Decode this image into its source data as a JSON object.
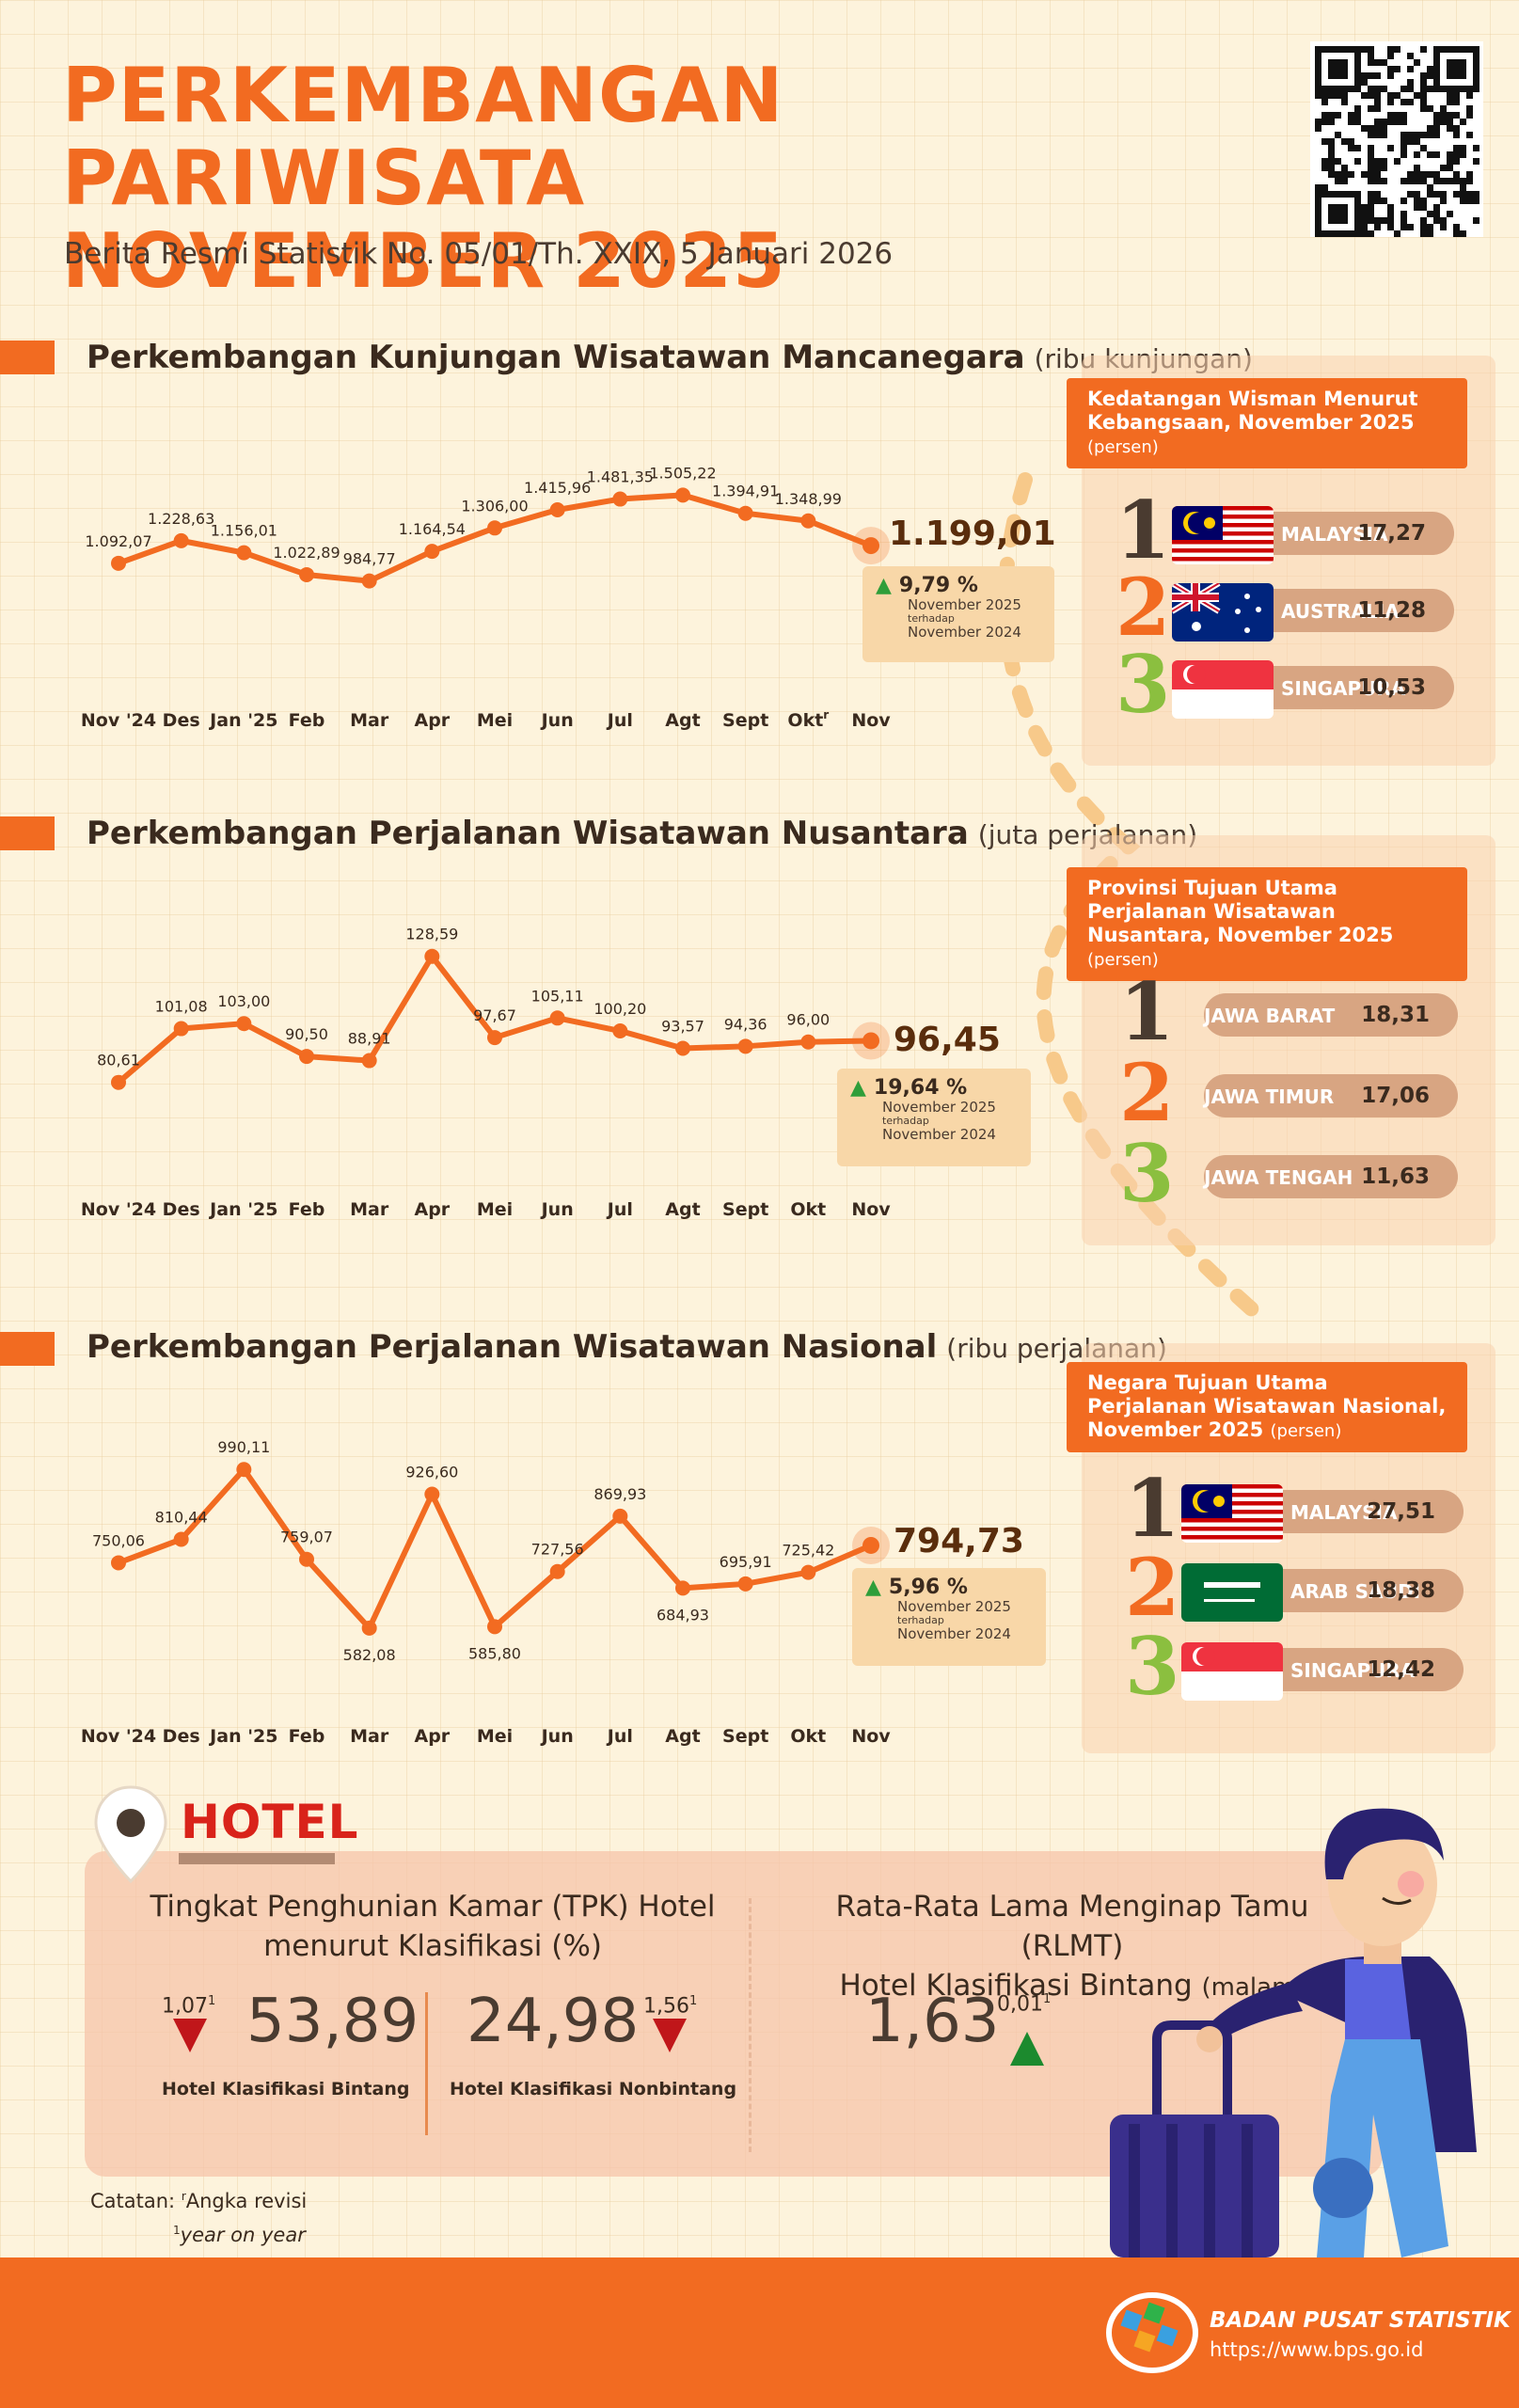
{
  "header": {
    "title_line1": "PERKEMBANGAN PARIWISATA",
    "title_line2": "NOVEMBER 2025",
    "subtitle": "Berita Resmi Statistik No. 05/01/Th. XXIX, 5 Januari 2026"
  },
  "colors": {
    "accent": "#f26b21",
    "line": "#f26b21",
    "up": "#2f9e3a",
    "down": "#c0161a",
    "footer": "#f26b21"
  },
  "months": [
    "Nov '24",
    "Des",
    "Jan '25",
    "Feb",
    "Mar",
    "Apr",
    "Mei",
    "Jun",
    "Jul",
    "Agt",
    "Sept",
    "Okt",
    "Nov"
  ],
  "wisman": {
    "title": "Perkembangan Kunjungan Wisatawan Mancanegara",
    "unit": "(ribu kunjungan)",
    "okt_mark": "r",
    "labels": [
      "1.092,07",
      "1.228,63",
      "1.156,01",
      "1.022,89",
      "984,77",
      "1.164,54",
      "1.306,00",
      "1.415,96",
      "1.481,35",
      "1.505,22",
      "1.394,91",
      "1.348,99",
      "1.199,01"
    ],
    "change": {
      "pct": "9,79 %",
      "l1": "November 2025",
      "l2": "terhadap",
      "l3": "November 2024"
    },
    "panel": {
      "title": "Kedatangan Wisman Menurut Kebangsaan, November 2025",
      "pct_note": "(persen)",
      "items": [
        {
          "rank": "1",
          "name": "MALAYSIA",
          "value": "17,27",
          "flag": "malaysia-flag-icon"
        },
        {
          "rank": "2",
          "name": "AUSTRALIA",
          "value": "11,28",
          "flag": "australia-flag-icon"
        },
        {
          "rank": "3",
          "name": "SINGAPURA",
          "value": "10,53",
          "flag": "singapore-flag-icon"
        }
      ]
    }
  },
  "wisnus": {
    "title": "Perkembangan Perjalanan Wisatawan Nusantara",
    "unit": "(juta perjalanan)",
    "labels": [
      "80,61",
      "101,08",
      "103,00",
      "90,50",
      "88,91",
      "128,59",
      "97,67",
      "105,11",
      "100,20",
      "93,57",
      "94,36",
      "96,00",
      "96,45"
    ],
    "change": {
      "pct": "19,64 %",
      "l1": "November 2025",
      "l2": "terhadap",
      "l3": "November 2024"
    },
    "panel": {
      "title": "Provinsi Tujuan Utama Perjalanan Wisatawan Nusantara, November 2025",
      "pct_note": "(persen)",
      "items": [
        {
          "rank": "1",
          "name": "JAWA BARAT",
          "value": "18,31"
        },
        {
          "rank": "2",
          "name": "JAWA TIMUR",
          "value": "17,06"
        },
        {
          "rank": "3",
          "name": "JAWA TENGAH",
          "value": "11,63"
        }
      ]
    }
  },
  "wisnas": {
    "title": "Perkembangan Perjalanan Wisatawan Nasional",
    "unit": "(ribu perjalanan)",
    "labels": [
      "750,06",
      "810,44",
      "990,11",
      "759,07",
      "582,08",
      "926,60",
      "585,80",
      "727,56",
      "869,93",
      "684,93",
      "695,91",
      "725,42",
      "794,73"
    ],
    "change": {
      "pct": "5,96 %",
      "l1": "November 2025",
      "l2": "terhadap",
      "l3": "November 2024"
    },
    "panel": {
      "title": "Negara Tujuan Utama Perjalanan Wisatawan Nasional, November 2025",
      "pct_note": "(persen)",
      "items": [
        {
          "rank": "1",
          "name": "MALAYSIA",
          "value": "27,51",
          "flag": "malaysia-flag-icon"
        },
        {
          "rank": "2",
          "name": "ARAB SAUDI",
          "value": "18,38",
          "flag": "saudi-arabia-flag-icon"
        },
        {
          "rank": "3",
          "name": "SINGAPURA",
          "value": "12,42",
          "flag": "singapore-flag-icon"
        }
      ]
    }
  },
  "chart_data": [
    {
      "type": "line",
      "x": [
        "Nov '24",
        "Des",
        "Jan '25",
        "Feb",
        "Mar",
        "Apr",
        "Mei",
        "Jun",
        "Jul",
        "Agt",
        "Sept",
        "Okt",
        "Nov"
      ],
      "series": [
        {
          "values": [
            1092.07,
            1228.63,
            1156.01,
            1022.89,
            984.77,
            1164.54,
            1306.0,
            1415.96,
            1481.35,
            1505.22,
            1394.91,
            1348.99,
            1199.01
          ]
        }
      ]
    },
    {
      "type": "line",
      "x": [
        "Nov '24",
        "Des",
        "Jan '25",
        "Feb",
        "Mar",
        "Apr",
        "Mei",
        "Jun",
        "Jul",
        "Agt",
        "Sept",
        "Okt",
        "Nov"
      ],
      "series": [
        {
          "values": [
            80.61,
            101.08,
            103.0,
            90.5,
            88.91,
            128.59,
            97.67,
            105.11,
            100.2,
            93.57,
            94.36,
            96.0,
            96.45
          ]
        }
      ]
    },
    {
      "type": "line",
      "x": [
        "Nov '24",
        "Des",
        "Jan '25",
        "Feb",
        "Mar",
        "Apr",
        "Mei",
        "Jun",
        "Jul",
        "Agt",
        "Sept",
        "Okt",
        "Nov"
      ],
      "series": [
        {
          "values": [
            750.06,
            810.44,
            990.11,
            759.07,
            582.08,
            926.6,
            585.8,
            727.56,
            869.93,
            684.93,
            695.91,
            725.42,
            794.73
          ]
        }
      ]
    }
  ],
  "hotel": {
    "label": "HOTEL",
    "tpk_title_l1": "Tingkat Penghunian Kamar (TPK) Hotel",
    "tpk_title_l2": "menurut Klasifikasi (%)",
    "bintang_value": "53,89",
    "bintang_change": "1,07",
    "bintang_change_sup": "1",
    "bintang_label": "Hotel Klasifikasi Bintang",
    "nonbintang_value": "24,98",
    "nonbintang_change": "1,56",
    "nonbintang_change_sup": "1",
    "nonbintang_label": "Hotel Klasifikasi Nonbintang",
    "rlmt_title_l1": "Rata-Rata Lama Menginap Tamu (RLMT)",
    "rlmt_title_l2": "Hotel Klasifikasi Bintang",
    "rlmt_unit": "(malam)",
    "rlmt_value": "1,63",
    "rlmt_change": "0,01",
    "rlmt_change_sup": "1"
  },
  "notes": {
    "catatan": "Catatan:",
    "revisi_mark": "r",
    "revisi": "Angka revisi",
    "yoy_mark": "1",
    "yoy": "year on year"
  },
  "footer": {
    "org": "BADAN PUSAT STATISTIK",
    "url": "https://www.bps.go.id"
  }
}
